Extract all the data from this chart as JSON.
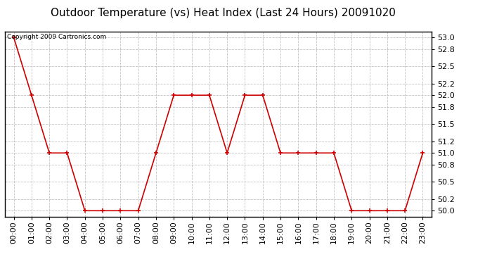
{
  "title": "Outdoor Temperature (vs) Heat Index (Last 24 Hours) 20091020",
  "copyright_text": "Copyright 2009 Cartronics.com",
  "x_labels": [
    "00:00",
    "01:00",
    "02:00",
    "03:00",
    "04:00",
    "05:00",
    "06:00",
    "07:00",
    "08:00",
    "09:00",
    "10:00",
    "11:00",
    "12:00",
    "13:00",
    "14:00",
    "15:00",
    "16:00",
    "17:00",
    "18:00",
    "19:00",
    "20:00",
    "21:00",
    "22:00",
    "23:00"
  ],
  "y_values": [
    53.0,
    52.0,
    51.0,
    51.0,
    50.0,
    50.0,
    50.0,
    50.0,
    51.0,
    52.0,
    52.0,
    52.0,
    51.0,
    52.0,
    52.0,
    51.0,
    51.0,
    51.0,
    51.0,
    50.0,
    50.0,
    50.0,
    50.0,
    51.0
  ],
  "ylim_min": 49.9,
  "ylim_max": 53.1,
  "yticks": [
    50.0,
    50.2,
    50.5,
    50.8,
    51.0,
    51.2,
    51.5,
    51.8,
    52.0,
    52.2,
    52.5,
    52.8,
    53.0
  ],
  "line_color": "#cc0000",
  "marker_color": "#cc0000",
  "bg_color": "#ffffff",
  "plot_bg_color": "#ffffff",
  "grid_color": "#bbbbbb",
  "title_fontsize": 11,
  "tick_fontsize": 8,
  "copyright_fontsize": 6.5
}
